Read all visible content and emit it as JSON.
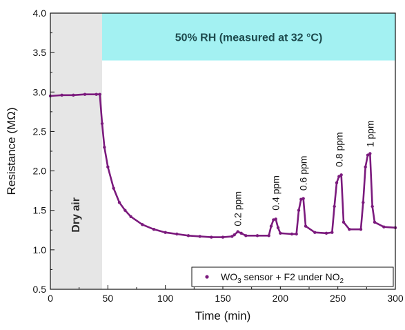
{
  "chart_data": {
    "type": "line",
    "xlabel": "Time (min)",
    "ylabel": "Resistance (MΩ)",
    "xlim": [
      0,
      300
    ],
    "ylim": [
      0.5,
      4.0
    ],
    "x_ticks": [
      "0",
      "50",
      "100",
      "150",
      "200",
      "250",
      "300"
    ],
    "y_ticks": [
      "0.5",
      "1.0",
      "1.5",
      "2.0",
      "2.5",
      "3.0",
      "3.5",
      "4.0"
    ],
    "grid": false,
    "legend_position": "bottom-right",
    "series": [
      {
        "name": "WO3 sensor + F2 under NO2",
        "color": "#7b1a7d",
        "marker": "circle",
        "x": [
          0,
          10,
          20,
          30,
          40,
          43,
          45,
          47,
          50,
          55,
          60,
          65,
          70,
          80,
          90,
          100,
          110,
          120,
          130,
          140,
          150,
          158,
          160,
          163,
          166,
          170,
          180,
          190,
          192,
          194,
          196,
          198,
          200,
          210,
          214,
          216,
          218,
          220,
          222,
          230,
          240,
          245,
          247,
          249,
          251,
          253,
          255,
          260,
          270,
          272,
          274,
          276,
          278,
          280,
          282,
          290,
          300
        ],
        "y": [
          2.95,
          2.96,
          2.96,
          2.97,
          2.97,
          2.97,
          2.6,
          2.3,
          2.05,
          1.78,
          1.6,
          1.5,
          1.42,
          1.32,
          1.26,
          1.22,
          1.2,
          1.18,
          1.17,
          1.16,
          1.16,
          1.17,
          1.19,
          1.23,
          1.21,
          1.18,
          1.18,
          1.18,
          1.3,
          1.38,
          1.39,
          1.28,
          1.21,
          1.2,
          1.2,
          1.5,
          1.64,
          1.65,
          1.3,
          1.22,
          1.21,
          1.22,
          1.55,
          1.85,
          1.93,
          1.95,
          1.35,
          1.26,
          1.26,
          1.6,
          2.05,
          2.2,
          2.22,
          1.55,
          1.35,
          1.29,
          1.28
        ]
      }
    ],
    "regions": [
      {
        "label": "Dry air",
        "x_range": [
          0,
          45
        ],
        "y_range": [
          0.5,
          4.0
        ],
        "color": "#e6e6e6"
      },
      {
        "label": "50% RH (measured at 32 °C)",
        "x_range": [
          45,
          300
        ],
        "y_range": [
          3.4,
          4.0
        ],
        "color": "#a3f1f2"
      }
    ],
    "annotations": [
      {
        "text": "0.2 ppm",
        "x": 166,
        "y": 1.3
      },
      {
        "text": "0.4 ppm",
        "x": 199,
        "y": 1.5
      },
      {
        "text": "0.6 ppm",
        "x": 223,
        "y": 1.75
      },
      {
        "text": "0.8 ppm",
        "x": 254,
        "y": 2.05
      },
      {
        "text": "1 ppm",
        "x": 281,
        "y": 2.3
      }
    ]
  },
  "legend": {
    "label_prefix": "WO",
    "label_sub1": "3",
    "label_mid": " sensor + F2 under NO",
    "label_sub2": "2"
  }
}
